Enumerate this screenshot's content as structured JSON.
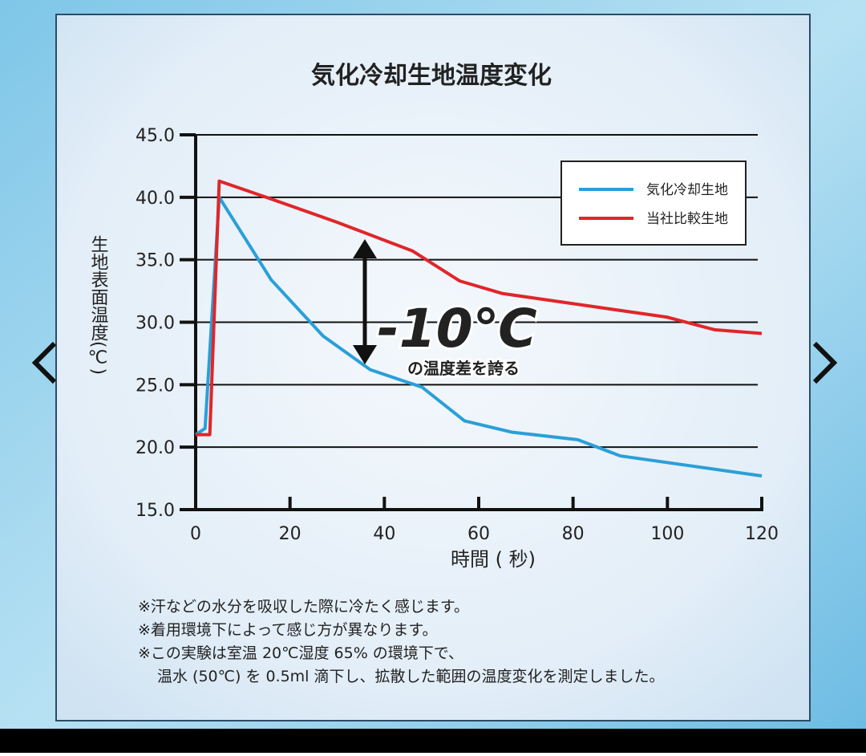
{
  "chart_data": {
    "type": "line",
    "title": "気化冷却生地温度変化",
    "y_label": "生地表面温度(℃)",
    "x_label": "時間 ( 秒)",
    "xlim": [
      0,
      120
    ],
    "xticks": [
      0,
      20,
      40,
      60,
      80,
      100,
      120
    ],
    "ylim": [
      15,
      45
    ],
    "yticks": [
      {
        "value": 15,
        "label": "15.0"
      },
      {
        "value": 20,
        "label": "20.0"
      },
      {
        "value": 25,
        "label": "25.0"
      },
      {
        "value": 30,
        "label": "30.0"
      },
      {
        "value": 35,
        "label": "35.0"
      },
      {
        "value": 40,
        "label": "40.0"
      },
      {
        "value": 45,
        "label": "45.0"
      }
    ],
    "grid": true,
    "legend": "upper right",
    "series": [
      {
        "name": "気化冷却生地",
        "color": "#2a9fd8",
        "x": [
          0,
          2,
          5,
          16,
          27,
          37,
          48,
          57,
          67,
          81,
          90,
          120
        ],
        "values": [
          21,
          21.5,
          40,
          33.4,
          28.9,
          26.2,
          24.8,
          22.1,
          21.2,
          20.6,
          19.3,
          17.7
        ]
      },
      {
        "name": "当社比較生地",
        "color": "#e0262a",
        "x": [
          0,
          3,
          5,
          15,
          30,
          46,
          56,
          65,
          100,
          110,
          120
        ],
        "values": [
          21,
          21,
          41.3,
          40,
          38,
          35.7,
          33.3,
          32.3,
          30.4,
          29.4,
          29.1
        ]
      }
    ],
    "annotations": [
      "-10℃",
      "の温度差を誇る"
    ],
    "notes": [
      "※汗などの水分を吸収した際に冷たく感じます。",
      "※着用環境下によって感じ方が異なります。",
      "※この実験は室温 20℃湿度 65% の環境下で、",
      "温水 (50℃) を 0.5ml 滴下し、拡散した範囲の温度変化を測定しました。"
    ]
  }
}
